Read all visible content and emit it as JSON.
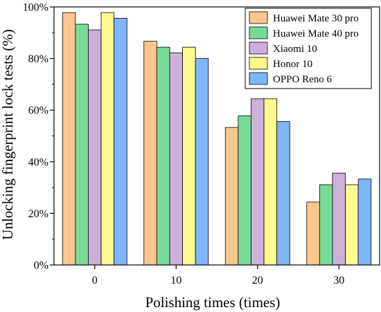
{
  "chart_data": {
    "type": "bar",
    "title": "",
    "xlabel": "Polishing times (times)",
    "ylabel": "Unlocking fingerprint lock tests (%)",
    "categories": [
      "0",
      "10",
      "20",
      "30"
    ],
    "ylim": [
      0,
      100
    ],
    "yticks": [
      0,
      20,
      40,
      60,
      80,
      100
    ],
    "ytick_labels": [
      "0%",
      "20%",
      "40%",
      "60%",
      "80%",
      "100%"
    ],
    "legend_position": "top-right",
    "grid": false,
    "series": [
      {
        "name": "Huawei Mate 30 pro",
        "color": "#FDC68E",
        "values": [
          97.8,
          86.7,
          53.3,
          24.4
        ]
      },
      {
        "name": "Huawei Mate 40 pro",
        "color": "#77DB95",
        "values": [
          93.3,
          84.4,
          57.8,
          31.1
        ]
      },
      {
        "name": "Xiaomi 10",
        "color": "#CDB0D9",
        "values": [
          91.1,
          82.2,
          64.4,
          35.6
        ]
      },
      {
        "name": "Honor 10",
        "color": "#FDFB8E",
        "values": [
          97.8,
          84.4,
          64.4,
          31.1
        ]
      },
      {
        "name": "OPPO Reno 6",
        "color": "#7FB5FA",
        "values": [
          95.6,
          80.0,
          55.6,
          33.3
        ]
      }
    ]
  }
}
